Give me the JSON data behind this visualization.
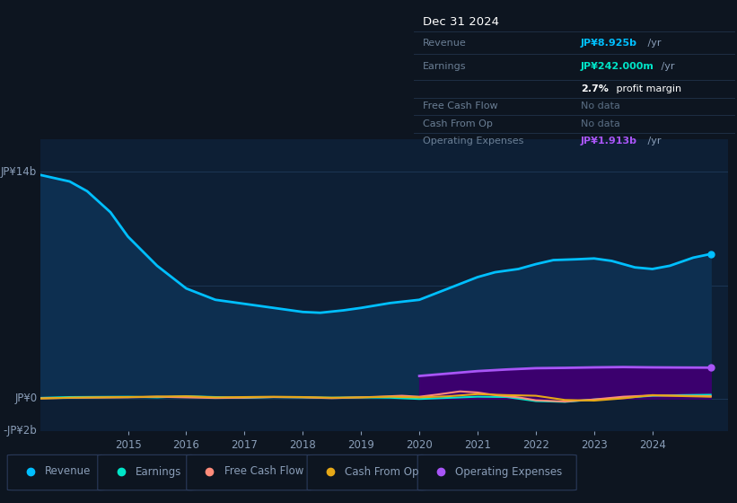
{
  "bg_color": "#0d1520",
  "plot_bg_color": "#0d1f35",
  "grid_color": "#1e3a5a",
  "title_date": "Dec 31 2024",
  "info_revenue_label": "Revenue",
  "info_revenue_val": "JP¥8.925b /yr",
  "info_earnings_label": "Earnings",
  "info_earnings_val": "JP¥242.000m /yr",
  "info_margin_val": "2.7% profit margin",
  "info_fcf_label": "Free Cash Flow",
  "info_fcf_val": "No data",
  "info_cashop_label": "Cash From Op",
  "info_cashop_val": "No data",
  "info_opex_label": "Operating Expenses",
  "info_opex_val": "JP¥1.913b /yr",
  "revenue_color": "#00bfff",
  "revenue_fill_color": "#0d2f50",
  "earnings_color": "#00e5c8",
  "fcf_color": "#ff8c7a",
  "cashfromop_color": "#e6a817",
  "opex_color": "#a855f7",
  "opex_fill_color": "#3b006e",
  "legend_items": [
    "Revenue",
    "Earnings",
    "Free Cash Flow",
    "Cash From Op",
    "Operating Expenses"
  ],
  "legend_colors": [
    "#00bfff",
    "#00e5c8",
    "#ff8c7a",
    "#e6a817",
    "#a855f7"
  ],
  "revenue_x": [
    2013.5,
    2014.0,
    2014.3,
    2014.7,
    2015.0,
    2015.5,
    2016.0,
    2016.5,
    2017.0,
    2017.5,
    2018.0,
    2018.3,
    2018.7,
    2019.0,
    2019.5,
    2020.0,
    2020.5,
    2021.0,
    2021.3,
    2021.7,
    2022.0,
    2022.3,
    2022.7,
    2023.0,
    2023.3,
    2023.7,
    2024.0,
    2024.3,
    2024.7,
    2025.0
  ],
  "revenue_y": [
    13800000000.0,
    13400000000.0,
    12800000000.0,
    11500000000.0,
    10000000000.0,
    8200000000.0,
    6800000000.0,
    6100000000.0,
    5850000000.0,
    5600000000.0,
    5350000000.0,
    5300000000.0,
    5450000000.0,
    5600000000.0,
    5900000000.0,
    6100000000.0,
    6800000000.0,
    7500000000.0,
    7800000000.0,
    8000000000.0,
    8300000000.0,
    8550000000.0,
    8600000000.0,
    8650000000.0,
    8500000000.0,
    8100000000.0,
    8000000000.0,
    8200000000.0,
    8700000000.0,
    8925000000.0
  ],
  "earnings_x": [
    2013.5,
    2014.0,
    2015.0,
    2015.5,
    2016.0,
    2016.5,
    2017.0,
    2017.5,
    2018.0,
    2018.5,
    2019.0,
    2019.5,
    2020.0,
    2020.5,
    2021.0,
    2021.5,
    2022.0,
    2022.5,
    2023.0,
    2023.5,
    2024.0,
    2024.5,
    2025.0
  ],
  "earnings_y": [
    50000000.0,
    100000000.0,
    120000000.0,
    80000000.0,
    150000000.0,
    100000000.0,
    50000000.0,
    100000000.0,
    80000000.0,
    60000000.0,
    80000000.0,
    60000000.0,
    -20000000.0,
    50000000.0,
    120000000.0,
    100000000.0,
    -150000000.0,
    -200000000.0,
    -50000000.0,
    50000000.0,
    180000000.0,
    220000000.0,
    242000000.0
  ],
  "fcf_x": [
    2013.5,
    2014.0,
    2015.0,
    2015.5,
    2016.0,
    2016.5,
    2017.0,
    2017.5,
    2018.0,
    2018.5,
    2019.0,
    2019.3,
    2019.7,
    2020.0,
    2020.3,
    2020.7,
    2021.0,
    2021.3,
    2021.7,
    2022.0,
    2022.5,
    2023.0,
    2023.5,
    2024.0,
    2024.5,
    2025.0
  ],
  "fcf_y": [
    20000000.0,
    50000000.0,
    80000000.0,
    120000000.0,
    80000000.0,
    40000000.0,
    60000000.0,
    100000000.0,
    80000000.0,
    30000000.0,
    80000000.0,
    120000000.0,
    180000000.0,
    120000000.0,
    250000000.0,
    450000000.0,
    380000000.0,
    220000000.0,
    80000000.0,
    -100000000.0,
    -180000000.0,
    -50000000.0,
    120000000.0,
    200000000.0,
    180000000.0,
    150000000.0
  ],
  "cashfromop_x": [
    2013.5,
    2014.0,
    2015.0,
    2015.5,
    2016.0,
    2016.5,
    2017.0,
    2017.5,
    2018.0,
    2018.5,
    2019.0,
    2019.5,
    2020.0,
    2020.5,
    2021.0,
    2021.5,
    2022.0,
    2022.5,
    2023.0,
    2023.5,
    2024.0,
    2024.5,
    2025.0
  ],
  "cashfromop_y": [
    10000000.0,
    60000000.0,
    100000000.0,
    130000000.0,
    150000000.0,
    80000000.0,
    100000000.0,
    120000000.0,
    100000000.0,
    60000000.0,
    80000000.0,
    120000000.0,
    80000000.0,
    150000000.0,
    280000000.0,
    220000000.0,
    180000000.0,
    -80000000.0,
    -120000000.0,
    20000000.0,
    220000000.0,
    160000000.0,
    120000000.0
  ],
  "opex_x": [
    2020.0,
    2020.5,
    2021.0,
    2021.5,
    2022.0,
    2022.5,
    2023.0,
    2023.5,
    2024.0,
    2024.5,
    2025.0
  ],
  "opex_y": [
    1400000000.0,
    1550000000.0,
    1700000000.0,
    1800000000.0,
    1880000000.0,
    1900000000.0,
    1930000000.0,
    1950000000.0,
    1930000000.0,
    1920000000.0,
    1913000000.0
  ],
  "ylim_min": -2000000000.0,
  "ylim_max": 16000000000.0,
  "xlim_min": 2013.5,
  "xlim_max": 2025.3,
  "xticks": [
    2015,
    2016,
    2017,
    2018,
    2019,
    2020,
    2021,
    2022,
    2023,
    2024
  ],
  "ytick_14b": 14000000000.0,
  "ytick_0": 0,
  "ytick_neg2b": -2000000000.0
}
